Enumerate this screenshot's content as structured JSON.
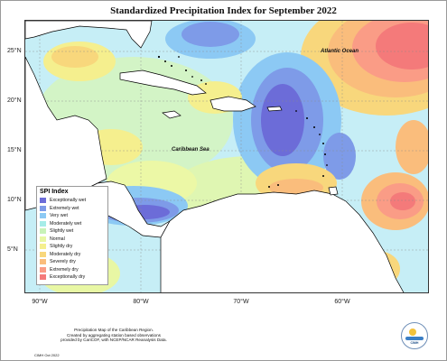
{
  "title": "Standardized Precipitation Index for September 2022",
  "lat_labels": [
    "25°N",
    "20°N",
    "15°N",
    "10°N",
    "5°N"
  ],
  "lon_labels": [
    "90°W",
    "80°W",
    "70°W",
    "60°W"
  ],
  "sea_labels": {
    "atlantic": "Atlantic Ocean",
    "caribbean": "Caribbean Sea"
  },
  "legend": {
    "title": "SPI Index",
    "items": [
      {
        "label": "Exceptionally wet",
        "color": "#6c6cd8"
      },
      {
        "label": "Extremely wet",
        "color": "#7e9be8"
      },
      {
        "label": "Very wet",
        "color": "#8cc9f4"
      },
      {
        "label": "Moderately wet",
        "color": "#a6ece8"
      },
      {
        "label": "Slightly wet",
        "color": "#c8f2b8"
      },
      {
        "label": "Normal",
        "color": "#e8f7a4"
      },
      {
        "label": "Slightly dry",
        "color": "#f5ef8e"
      },
      {
        "label": "Moderately dry",
        "color": "#f8d77c"
      },
      {
        "label": "Severely dry",
        "color": "#fabd7c"
      },
      {
        "label": "Extremely dry",
        "color": "#fa9c86"
      },
      {
        "label": "Exceptionally dry",
        "color": "#f47a7a"
      }
    ]
  },
  "footer": {
    "note_line1": "Precipitation Map of the Caribbean Region.",
    "note_line2": "Created by aggregating station based observations",
    "note_line3": "provided by CariCOF, with NCEP/NCAR Reanalysis Data.",
    "credit": "CIMH Oct 2022"
  },
  "logo": {
    "text": "CIMH"
  }
}
